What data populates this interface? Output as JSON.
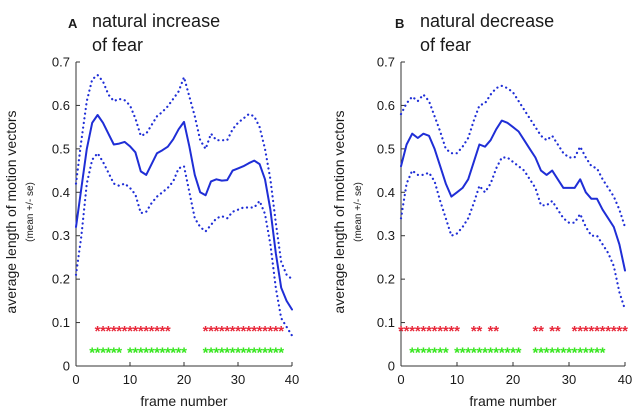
{
  "chart_data": [
    {
      "type": "line",
      "panel_letter": "A",
      "title_lines": [
        "natural increase",
        "of fear"
      ],
      "xlabel": "frame number",
      "ylabel_lines": [
        "average length of motion vectors",
        "(mean +/- se)"
      ],
      "xlim": [
        0,
        40
      ],
      "ylim": [
        0,
        0.7
      ],
      "xticks": [
        "0",
        "10",
        "20",
        "30",
        "40"
      ],
      "yticks": [
        "0",
        "0.1",
        "0.2",
        "0.3",
        "0.4",
        "0.5",
        "0.6",
        "0.7"
      ],
      "x": [
        0,
        1,
        2,
        3,
        4,
        5,
        6,
        7,
        8,
        9,
        10,
        11,
        12,
        13,
        14,
        15,
        16,
        17,
        18,
        19,
        20,
        21,
        22,
        23,
        24,
        25,
        26,
        27,
        28,
        29,
        30,
        31,
        32,
        33,
        34,
        35,
        36,
        37,
        38,
        39,
        40
      ],
      "series": [
        {
          "name": "mean",
          "style": "solid",
          "color": "#1f2ed6",
          "values": [
            0.32,
            0.41,
            0.5,
            0.56,
            0.578,
            0.56,
            0.535,
            0.51,
            0.512,
            0.516,
            0.506,
            0.492,
            0.448,
            0.44,
            0.465,
            0.49,
            0.497,
            0.505,
            0.522,
            0.545,
            0.562,
            0.505,
            0.44,
            0.4,
            0.393,
            0.425,
            0.43,
            0.427,
            0.428,
            0.45,
            0.455,
            0.46,
            0.467,
            0.473,
            0.465,
            0.43,
            0.36,
            0.26,
            0.18,
            0.15,
            0.13
          ]
        },
        {
          "name": "mean + se",
          "style": "dotted",
          "color": "#1f2ed6",
          "values": [
            0.42,
            0.52,
            0.61,
            0.66,
            0.67,
            0.655,
            0.625,
            0.61,
            0.615,
            0.612,
            0.6,
            0.57,
            0.53,
            0.535,
            0.555,
            0.575,
            0.585,
            0.598,
            0.615,
            0.632,
            0.665,
            0.62,
            0.575,
            0.52,
            0.5,
            0.535,
            0.52,
            0.52,
            0.52,
            0.545,
            0.56,
            0.57,
            0.58,
            0.575,
            0.55,
            0.5,
            0.43,
            0.33,
            0.24,
            0.21,
            0.2
          ]
        },
        {
          "name": "mean - se",
          "style": "dotted",
          "color": "#1f2ed6",
          "values": [
            0.21,
            0.3,
            0.42,
            0.475,
            0.49,
            0.47,
            0.445,
            0.42,
            0.415,
            0.42,
            0.41,
            0.395,
            0.352,
            0.355,
            0.375,
            0.39,
            0.4,
            0.41,
            0.425,
            0.455,
            0.46,
            0.4,
            0.34,
            0.32,
            0.31,
            0.325,
            0.34,
            0.345,
            0.34,
            0.355,
            0.36,
            0.365,
            0.365,
            0.365,
            0.38,
            0.35,
            0.28,
            0.18,
            0.11,
            0.09,
            0.07
          ]
        }
      ],
      "markers": [
        {
          "color": "#e8283a",
          "y": 0.09,
          "x": [
            4,
            5,
            6,
            7,
            8,
            9,
            10,
            11,
            12,
            13,
            14,
            15,
            16,
            17,
            24,
            25,
            26,
            27,
            28,
            29,
            30,
            31,
            32,
            33,
            34,
            35,
            36,
            37,
            38
          ]
        },
        {
          "color": "#36e61e",
          "y": 0.04,
          "x": [
            3,
            4,
            5,
            6,
            7,
            8,
            10,
            11,
            12,
            13,
            14,
            15,
            16,
            17,
            18,
            19,
            20,
            24,
            25,
            26,
            27,
            28,
            29,
            30,
            31,
            32,
            33,
            34,
            35,
            36,
            37,
            38
          ]
        }
      ]
    },
    {
      "type": "line",
      "panel_letter": "B",
      "title_lines": [
        "natural decrease",
        "of fear"
      ],
      "xlabel": "frame number",
      "ylabel_lines": [
        "average length of motion vectors",
        "(mean +/- se)"
      ],
      "xlim": [
        0,
        40
      ],
      "ylim": [
        0,
        0.7
      ],
      "xticks": [
        "0",
        "10",
        "20",
        "30",
        "40"
      ],
      "yticks": [
        "0",
        "0.1",
        "0.2",
        "0.3",
        "0.4",
        "0.5",
        "0.6",
        "0.7"
      ],
      "x": [
        0,
        1,
        2,
        3,
        4,
        5,
        6,
        7,
        8,
        9,
        10,
        11,
        12,
        13,
        14,
        15,
        16,
        17,
        18,
        19,
        20,
        21,
        22,
        23,
        24,
        25,
        26,
        27,
        28,
        29,
        30,
        31,
        32,
        33,
        34,
        35,
        36,
        37,
        38,
        39,
        40
      ],
      "series": [
        {
          "name": "mean",
          "style": "solid",
          "color": "#1f2ed6",
          "values": [
            0.46,
            0.51,
            0.535,
            0.525,
            0.535,
            0.53,
            0.5,
            0.46,
            0.42,
            0.39,
            0.4,
            0.41,
            0.43,
            0.47,
            0.51,
            0.505,
            0.52,
            0.545,
            0.565,
            0.56,
            0.55,
            0.54,
            0.52,
            0.5,
            0.48,
            0.45,
            0.44,
            0.45,
            0.43,
            0.41,
            0.41,
            0.41,
            0.43,
            0.4,
            0.385,
            0.385,
            0.36,
            0.34,
            0.32,
            0.28,
            0.22
          ]
        },
        {
          "name": "mean + se",
          "style": "dotted",
          "color": "#1f2ed6",
          "values": [
            0.58,
            0.605,
            0.62,
            0.61,
            0.625,
            0.61,
            0.575,
            0.54,
            0.5,
            0.49,
            0.49,
            0.505,
            0.525,
            0.565,
            0.6,
            0.605,
            0.625,
            0.64,
            0.645,
            0.64,
            0.63,
            0.61,
            0.59,
            0.57,
            0.55,
            0.53,
            0.52,
            0.53,
            0.51,
            0.49,
            0.48,
            0.48,
            0.505,
            0.48,
            0.46,
            0.455,
            0.43,
            0.41,
            0.39,
            0.36,
            0.32
          ]
        },
        {
          "name": "mean - se",
          "style": "dotted",
          "color": "#1f2ed6",
          "values": [
            0.34,
            0.42,
            0.45,
            0.44,
            0.44,
            0.445,
            0.425,
            0.38,
            0.34,
            0.3,
            0.305,
            0.32,
            0.34,
            0.375,
            0.415,
            0.4,
            0.42,
            0.455,
            0.48,
            0.48,
            0.47,
            0.46,
            0.45,
            0.43,
            0.41,
            0.37,
            0.37,
            0.38,
            0.36,
            0.34,
            0.33,
            0.33,
            0.35,
            0.32,
            0.3,
            0.3,
            0.28,
            0.26,
            0.23,
            0.17,
            0.13
          ]
        }
      ],
      "markers": [
        {
          "color": "#e8283a",
          "y": 0.09,
          "x": [
            0,
            1,
            2,
            3,
            4,
            5,
            6,
            7,
            8,
            9,
            10,
            13,
            14,
            16,
            17,
            24,
            25,
            27,
            28,
            31,
            32,
            33,
            34,
            35,
            36,
            37,
            38,
            39,
            40
          ]
        },
        {
          "color": "#36e61e",
          "y": 0.04,
          "x": [
            2,
            3,
            4,
            5,
            6,
            7,
            8,
            10,
            11,
            12,
            13,
            14,
            15,
            16,
            17,
            18,
            19,
            20,
            21,
            24,
            25,
            26,
            27,
            28,
            29,
            30,
            31,
            32,
            33,
            34,
            35,
            36
          ]
        }
      ]
    }
  ]
}
